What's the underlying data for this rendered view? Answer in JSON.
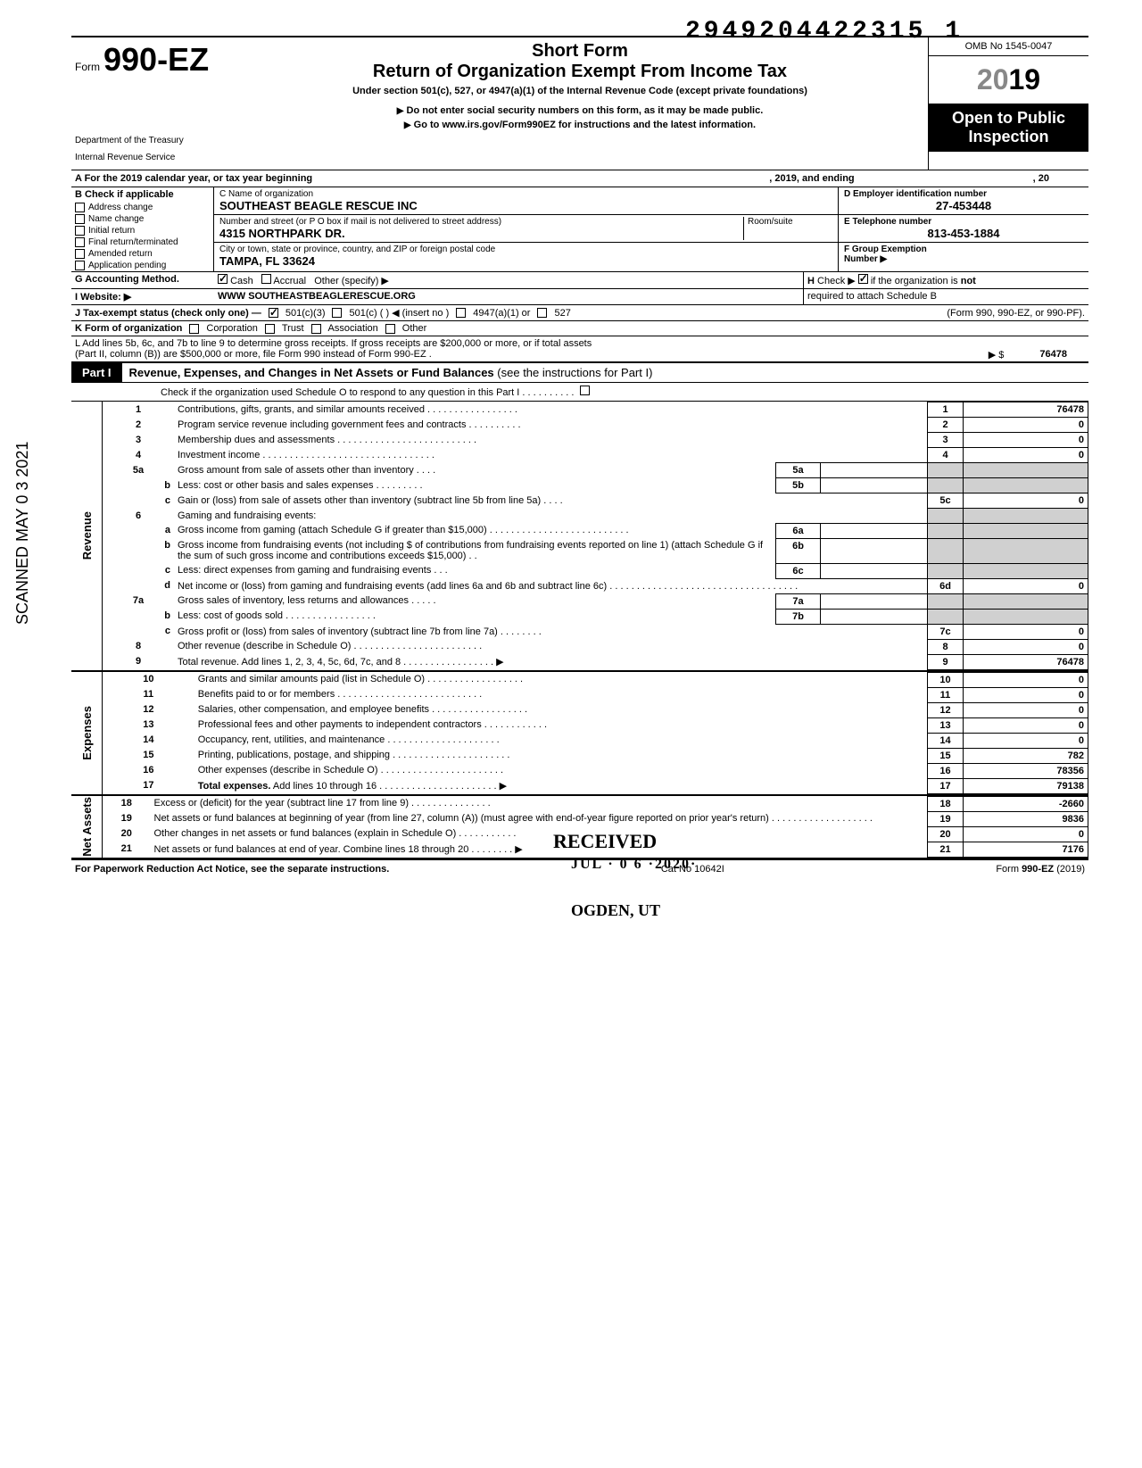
{
  "document_id": "2949204422315  1",
  "form": {
    "word": "Form",
    "number": "990-EZ"
  },
  "header": {
    "short_form": "Short Form",
    "title": "Return of Organization Exempt From Income Tax",
    "under_section": "Under section 501(c), 527, or 4947(a)(1) of the Internal Revenue Code (except private foundations)",
    "do_not": "Do not enter social security numbers on this form, as it may be made public.",
    "goto": "Go to www.irs.gov/Form990EZ for instructions and the latest information.",
    "omb": "OMB No 1545-0047",
    "year": "2019",
    "open1": "Open to Public",
    "open2": "Inspection",
    "dept1": "Department of the Treasury",
    "dept2": "Internal Revenue Service"
  },
  "line_a": {
    "prefix": "A  For the 2019 calendar year, or tax year beginning",
    "mid": ", 2019, and ending",
    "suffix": ", 20"
  },
  "section_b": {
    "header": "B  Check if applicable",
    "items": [
      "Address change",
      "Name change",
      "Initial return",
      "Final return/terminated",
      "Amended return",
      "Application pending"
    ]
  },
  "section_c": {
    "name_label": "C  Name of organization",
    "name_val": "SOUTHEAST BEAGLE RESCUE INC",
    "addr_label": "Number and street (or P O  box if mail is not delivered to street address)",
    "room_label": "Room/suite",
    "addr_val": "4315 NORTHPARK DR.",
    "city_label": "City or town, state or province, country, and ZIP or foreign postal code",
    "city_val": "TAMPA, FL 33624"
  },
  "section_d": {
    "label": "D Employer identification number",
    "val": "27-453448"
  },
  "section_e": {
    "label": "E  Telephone number",
    "val": "813-453-1884"
  },
  "section_f": {
    "label": "F  Group Exemption",
    "label2": "Number ▶"
  },
  "row_g": {
    "label": "G  Accounting Method.",
    "opts": [
      "Cash",
      "Accrual",
      "Other (specify) ▶"
    ],
    "h_text": "H  Check ▶        if the organization is not required to attach Schedule B (Form 990, 990-EZ, or 990-PF)."
  },
  "row_i": {
    "label": "I   Website: ▶",
    "val": "WWW SOUTHEASTBEAGLERESCUE.ORG"
  },
  "row_j": {
    "label": "J  Tax-exempt status (check only one) —",
    "opts": [
      "501(c)(3)",
      "501(c) (          ) ◀ (insert no )",
      "4947(a)(1) or",
      "527"
    ]
  },
  "row_k": {
    "label": "K  Form of organization",
    "opts": [
      "Corporation",
      "Trust",
      "Association",
      "Other"
    ]
  },
  "row_l": {
    "text1": "L  Add lines 5b, 6c, and 7b to line 9 to determine gross receipts. If gross receipts are $200,000 or more, or if total assets",
    "text2": "(Part II, column (B)) are $500,000 or more, file Form 990 instead of Form 990-EZ .",
    "arrow": "▶    $",
    "amount": "76478"
  },
  "part1": {
    "tag": "Part I",
    "title": "Revenue, Expenses, and Changes in Net Assets or Fund Balances",
    "paren": "(see the instructions for Part I)",
    "check_o": "Check if the organization used Schedule O to respond to any question in this Part I  .  .  .  .  .  .  .  .  .  ."
  },
  "sections": {
    "revenue": "Revenue",
    "expenses": "Expenses",
    "netassets": "Net Assets"
  },
  "scanned": "SCANNED MAY 0 3 2021",
  "rows": {
    "1": {
      "n": "1",
      "d": "Contributions, gifts, grants, and similar amounts received .  .  .  .  .  .  .  .  .  .  .  .  .  .  .  .  .",
      "box": "1",
      "v": "76478"
    },
    "2": {
      "n": "2",
      "d": "Program service revenue including government fees and contracts    .  .  .  .  .  .  .  .  .  .",
      "box": "2",
      "v": "0"
    },
    "3": {
      "n": "3",
      "d": "Membership dues and assessments .  .  .  .  .  .  .  .  .  .  .  .  .  .  .  .  .  .  .  .  .  .  .  .  .  .",
      "box": "3",
      "v": "0"
    },
    "4": {
      "n": "4",
      "d": "Investment income    .  .  .  .  .  .  .  .  .  .  .  .  .  .  .  .  .  .  .  .  .  .  .  .  .  .  .  .  .  .  .  .",
      "box": "4",
      "v": "0"
    },
    "5a": {
      "n": "5a",
      "d": "Gross amount from sale of assets other than inventory   .  .  .  .",
      "ib": "5a"
    },
    "5b": {
      "n": "b",
      "d": "Less: cost or other basis and sales expenses .  .  .  .  .  .  .  .  .",
      "ib": "5b"
    },
    "5c": {
      "n": "c",
      "d": "Gain or (loss) from sale of assets other than inventory (subtract line 5b from line 5a)  .  .  .  .",
      "box": "5c",
      "v": "0"
    },
    "6": {
      "n": "6",
      "d": "Gaming and fundraising events:"
    },
    "6a": {
      "n": "a",
      "d": "Gross income from gaming (attach Schedule G if greater than $15,000) .  .  .  .  .  .  .  .  .  .  .  .  .  .  .  .  .  .  .  .  .  .  .  .  .  .",
      "ib": "6a"
    },
    "6b": {
      "n": "b",
      "d": "Gross income from fundraising events (not including  $                     of contributions from fundraising events reported on line 1) (attach Schedule G if the sum of such gross income and contributions exceeds $15,000) .  .",
      "ib": "6b"
    },
    "6c": {
      "n": "c",
      "d": "Less: direct expenses from gaming and fundraising events   .  .  .",
      "ib": "6c"
    },
    "6d": {
      "n": "d",
      "d": "Net income or (loss) from gaming and fundraising events (add lines 6a and 6b and subtract line 6c)    .  .  .  .  .  .  .  .  .  .  .  .  .  .  .  .  .  .  .  .  .  .  .  .  .  .  .  .  .  .  .  .  .  .  .",
      "box": "6d",
      "v": "0"
    },
    "7a": {
      "n": "7a",
      "d": "Gross sales of inventory, less returns and allowances  .  .  .  .  .",
      "ib": "7a"
    },
    "7b": {
      "n": "b",
      "d": "Less: cost of goods sold     .  .  .  .  .  .  .  .  .  .  .  .  .  .  .  .  .",
      "ib": "7b"
    },
    "7c": {
      "n": "c",
      "d": "Gross profit or (loss) from sales of inventory (subtract line 7b from line 7a)  .  .  .  .  .  .  .  .",
      "box": "7c",
      "v": "0"
    },
    "8": {
      "n": "8",
      "d": "Other revenue (describe in Schedule O) .  .  .  .  .  .  .  .  .  .  .  .  .  .  .  .  .  .  .  .  .  .  .  .",
      "box": "8",
      "v": "0"
    },
    "9": {
      "n": "9",
      "d": "Total revenue. Add lines 1, 2, 3, 4, 5c, 6d, 7c, and 8   .  .  .  .  .  .  .  .  .  .  .  .  .  .  .  .  .  ▶",
      "box": "9",
      "v": "76478"
    },
    "10": {
      "n": "10",
      "d": "Grants and similar amounts paid (list in Schedule O)   .  .  .  .  .  .  .  .  .  .  .  .  .  .  .  .  .  .",
      "box": "10",
      "v": "0"
    },
    "11": {
      "n": "11",
      "d": "Benefits paid to or for members  .  .  .  .  .  .  .  .  .  .  .  .  .  .  .  .  .  .  .  .  .  .  .  .  .  .  .",
      "box": "11",
      "v": "0"
    },
    "12": {
      "n": "12",
      "d": "Salaries, other compensation, and employee benefits .  .  .  .  .  .  .  .  .  .  .  .  .  .  .  .  .  .",
      "box": "12",
      "v": "0"
    },
    "13": {
      "n": "13",
      "d": "Professional fees and other payments to independent contractors   .  .  .  .  .  .  .  .  .  .  .  .",
      "box": "13",
      "v": "0"
    },
    "14": {
      "n": "14",
      "d": "Occupancy, rent, utilities, and maintenance    .  .  .  .  .  .  .  .  .  .  .  .  .  .  .  .  .  .  .  .  .",
      "box": "14",
      "v": "0"
    },
    "15": {
      "n": "15",
      "d": "Printing, publications, postage, and shipping .  .  .  .  .  .  .  .  .  .  .  .  .  .  .  .  .  .  .  .  .  .",
      "box": "15",
      "v": "782"
    },
    "16": {
      "n": "16",
      "d": "Other expenses (describe in Schedule O)  .  .  .  .  .  .  .  .  .  .  .  .  .  .  .  .  .  .  .  .  .  .  .",
      "box": "16",
      "v": "78356"
    },
    "17": {
      "n": "17",
      "d": "Total expenses. Add lines 10 through 16  .  .  .  .  .  .  .  .  .  .  .  .  .  .  .  .  .  .  .  .  .  . ▶",
      "box": "17",
      "v": "79138"
    },
    "18": {
      "n": "18",
      "d": "Excess or (deficit) for the year (subtract line 17 from line 9)   .  .  .  .  .  .  .  .  .  .  .  .  .  .  .",
      "box": "18",
      "v": "-2660"
    },
    "19": {
      "n": "19",
      "d": "Net assets or fund balances at beginning of year (from line 27, column (A)) (must agree with end-of-year figure reported on prior year's return)    .  .  .  .  .  .  .  .  .  .  .  .  .  .  .  .  .  .  .",
      "box": "19",
      "v": "9836"
    },
    "20": {
      "n": "20",
      "d": "Other changes in net assets or fund balances (explain in Schedule O) .  .  .  .  .  .  .  .  .  .  .",
      "box": "20",
      "v": "0"
    },
    "21": {
      "n": "21",
      "d": "Net assets or fund balances at end of year. Combine lines 18 through 20    .  .  .  .  .  .  .  . ▶",
      "box": "21",
      "v": "7176"
    }
  },
  "stamps": {
    "received": "RECEIVED",
    "date": "JUL · 0 6 ·2020·",
    "ogden": "OGDEN, UT"
  },
  "footer": {
    "left": "For Paperwork Reduction Act Notice, see the separate instructions.",
    "mid": "Cat No 10642I",
    "right": "Form 990-EZ (2019)"
  }
}
